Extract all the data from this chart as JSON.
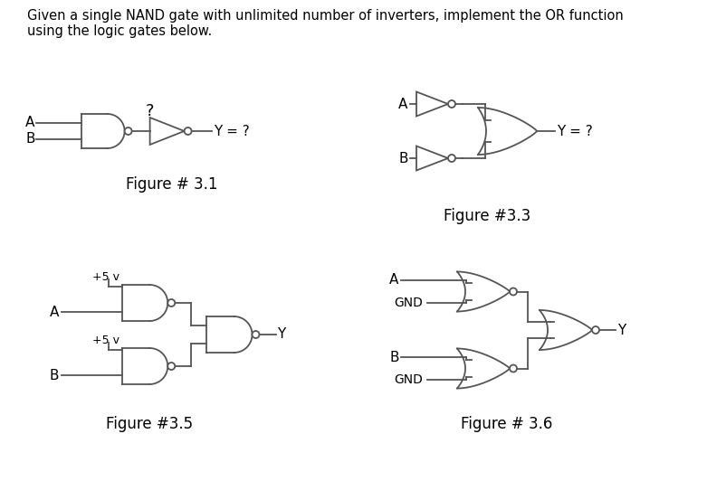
{
  "title_text": "Given a single NAND gate with unlimited number of inverters, implement the OR function\nusing the logic gates below.",
  "fig31_label": "Figure # 3.1",
  "fig33_label": "Figure #3.3",
  "fig35_label": "Figure #3.5",
  "fig36_label": "Figure # 3.6",
  "bg_color": "#ffffff",
  "line_color": "#555555",
  "text_color": "#000000"
}
